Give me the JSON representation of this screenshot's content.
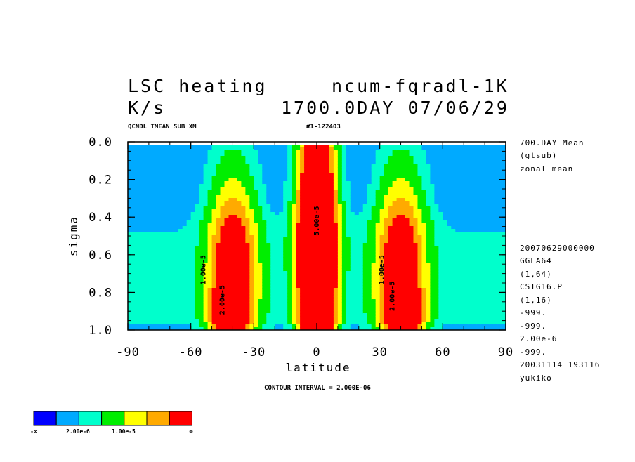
{
  "header": {
    "title_left": "LSC heating",
    "title_right": "ncum-fqradl-1K",
    "units": "K/s",
    "date": "1700.0DAY 07/06/29",
    "sub_left": "QCNDL TMEAN SUB XM",
    "sub_right": "#1-122403"
  },
  "side_info": {
    "top": [
      "700.DAY Mean",
      "(gtsub)",
      "zonal mean"
    ],
    "bottom": [
      "20070629000000",
      "GGLA64",
      "(1,64)",
      "CSIG16.P",
      "(1,16)",
      "-999.",
      "-999.",
      "2.00e-6",
      "-999.",
      "20031114 193116",
      "yukiko"
    ]
  },
  "contour_interval": "CONTOUR INTERVAL = 2.000E-06",
  "colorbar": {
    "colors": [
      "#0000ff",
      "#00aaff",
      "#00ffcc",
      "#00ee00",
      "#ffff00",
      "#ffaa00",
      "#ff0000"
    ],
    "labels": [
      "-∞",
      "2.00e-6",
      "1.00e-5",
      "∞"
    ]
  },
  "chart_data": {
    "type": "contour",
    "title": "LSC heating",
    "xlabel": "latitude",
    "ylabel": "sigma",
    "xlim": [
      -90,
      90
    ],
    "ylim": [
      1.0,
      0.0
    ],
    "xticks": [
      -90,
      -60,
      -30,
      0,
      30,
      60,
      90
    ],
    "yticks": [
      "0.0",
      "0.2",
      "0.4",
      "0.6",
      "0.8",
      "1.0"
    ],
    "ytick_values": [
      0.0,
      0.2,
      0.4,
      0.6,
      0.8,
      1.0
    ],
    "contour_interval": 2e-06,
    "contour_labels": [
      {
        "text": "1.00e-5",
        "lat": -53,
        "sigma": 0.68
      },
      {
        "text": "2.00e-5",
        "lat": -44,
        "sigma": 0.84
      },
      {
        "text": "5.00e-5",
        "lat": 1,
        "sigma": 0.42
      },
      {
        "text": "1.00e-5",
        "lat": 32,
        "sigma": 0.68
      },
      {
        "text": "2.00e-5",
        "lat": 37,
        "sigma": 0.82
      }
    ],
    "cells": [
      {
        "lat": -40,
        "sigma": 0.72,
        "wx": 8,
        "wy": 0.36,
        "peak": 3e-05
      },
      {
        "lat": 40,
        "sigma": 0.72,
        "wx": 8,
        "wy": 0.36,
        "peak": 3e-05
      },
      {
        "lat": 0,
        "sigma": 0.58,
        "wx": 6,
        "wy": 0.46,
        "peak": 6e-05
      },
      {
        "lat": -42,
        "sigma": 0.9,
        "wx": 5,
        "wy": 0.08,
        "peak": 2e-05
      },
      {
        "lat": 42,
        "sigma": 0.9,
        "wx": 5,
        "wy": 0.08,
        "peak": 2e-05
      }
    ],
    "levels": [
      0,
      2e-06,
      5e-06,
      1e-05,
      1.5e-05,
      2e-05,
      2.5e-05
    ]
  }
}
